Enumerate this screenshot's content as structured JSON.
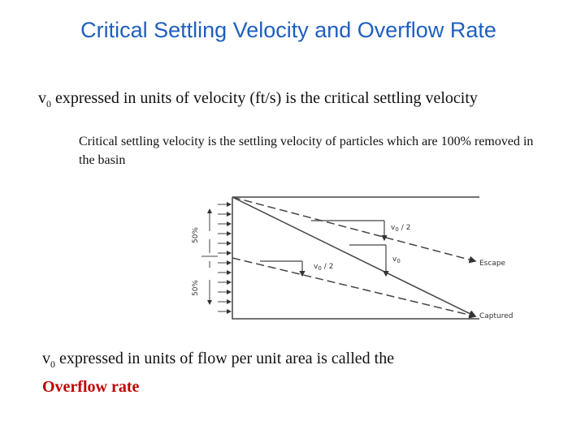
{
  "title": "Critical Settling Velocity and Overflow Rate",
  "point_1": {
    "symbol": "v",
    "subscript": "0",
    "text": "expressed in units of velocity (ft/s) is the critical settling velocity"
  },
  "sub_point": "Critical settling velocity is the settling velocity of particles which are 100% removed in the basin",
  "point_2": {
    "symbol": "v",
    "subscript": "0",
    "text": "expressed in units of flow per unit area is called the",
    "highlight": "Overflow rate"
  },
  "diagram": {
    "upper_fraction": "50%",
    "lower_fraction": "50%",
    "upper_half_velocity": {
      "symbol": "v",
      "subscript": "0",
      "text": "/ 2"
    },
    "velocity": {
      "symbol": "v",
      "subscript": "0"
    },
    "lower_half_velocity": {
      "symbol": "v",
      "subscript": "0",
      "text": "/ 2"
    },
    "escape": "Escape",
    "captured": "Captured"
  }
}
